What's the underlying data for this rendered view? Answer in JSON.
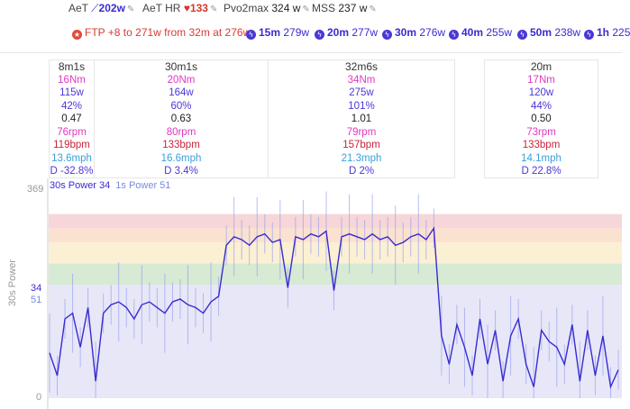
{
  "stats": [
    {
      "label": "AeT",
      "value": "202w",
      "icon": "trend-icon"
    },
    {
      "label": "AeT HR",
      "value": "133",
      "icon": "heart-icon"
    },
    {
      "label": "Pvo2max",
      "value": "324 w",
      "icon": ""
    },
    {
      "label": "MSS",
      "value": "237 w",
      "icon": ""
    }
  ],
  "warning": "FTP +8 to 271w from 32m at 276w",
  "chips": [
    {
      "dur": "15m",
      "pw": "279w"
    },
    {
      "dur": "20m",
      "pw": "277w"
    },
    {
      "dur": "30m",
      "pw": "276w"
    },
    {
      "dur": "40m",
      "pw": "255w"
    },
    {
      "dur": "50m",
      "pw": "238w"
    },
    {
      "dur": "1h",
      "pw": "225"
    }
  ],
  "intervals": [
    {
      "title": "8m1s",
      "nm": "16Nm",
      "w": "115w",
      "pct": "42%",
      "if": "0.47",
      "rpm": "76rpm",
      "bpm": "119bpm",
      "mph": "13.6mph",
      "d": "D -32.8%"
    },
    {
      "title": "30m1s",
      "nm": "20Nm",
      "w": "164w",
      "pct": "60%",
      "if": "0.63",
      "rpm": "80rpm",
      "bpm": "133bpm",
      "mph": "16.6mph",
      "d": "D 3.4%"
    },
    {
      "title": "32m6s",
      "nm": "34Nm",
      "w": "275w",
      "pct": "101%",
      "if": "1.01",
      "rpm": "79rpm",
      "bpm": "157bpm",
      "mph": "21.3mph",
      "d": "D 2%"
    },
    {
      "title": "20m",
      "nm": "17Nm",
      "w": "120w",
      "pct": "44%",
      "if": "0.50",
      "rpm": "73rpm",
      "bpm": "133bpm",
      "mph": "14.1mph",
      "d": "D 22.8%"
    }
  ],
  "chart": {
    "ylabel": "30s Power",
    "ymax": "369",
    "ymin": "0",
    "mark1": "34",
    "mark2": "51",
    "legend1": "30s Power 34",
    "legend2": "1s Power 51",
    "colors": {
      "line30s": "#3a2bd0",
      "line1s": "#9aa4ee",
      "z1": "#e7e7f8",
      "z2": "#d6ead4",
      "z3": "#fbf0d4",
      "z4": "#fbe2d0",
      "z5": "#f6d6d8"
    }
  },
  "chart_data": {
    "type": "line",
    "ylim": [
      0,
      369
    ],
    "zones_watts": [
      [
        0,
        200
      ],
      [
        200,
        238
      ],
      [
        238,
        275
      ],
      [
        275,
        300
      ],
      [
        300,
        325
      ]
    ],
    "series": [
      {
        "name": "30s Power",
        "note": "approx trace",
        "values": [
          80,
          40,
          140,
          150,
          90,
          160,
          30,
          150,
          165,
          170,
          160,
          140,
          165,
          170,
          160,
          150,
          170,
          175,
          165,
          160,
          150,
          170,
          180,
          270,
          285,
          280,
          270,
          285,
          290,
          275,
          280,
          195,
          285,
          280,
          290,
          285,
          295,
          190,
          285,
          290,
          285,
          280,
          290,
          280,
          285,
          270,
          275,
          285,
          290,
          280,
          300,
          110,
          60,
          130,
          90,
          40,
          140,
          60,
          120,
          30,
          110,
          140,
          60,
          20,
          120,
          100,
          90,
          60,
          130,
          30,
          120,
          40,
          110,
          20,
          50
        ]
      },
      {
        "name": "1s Power"
      }
    ]
  }
}
